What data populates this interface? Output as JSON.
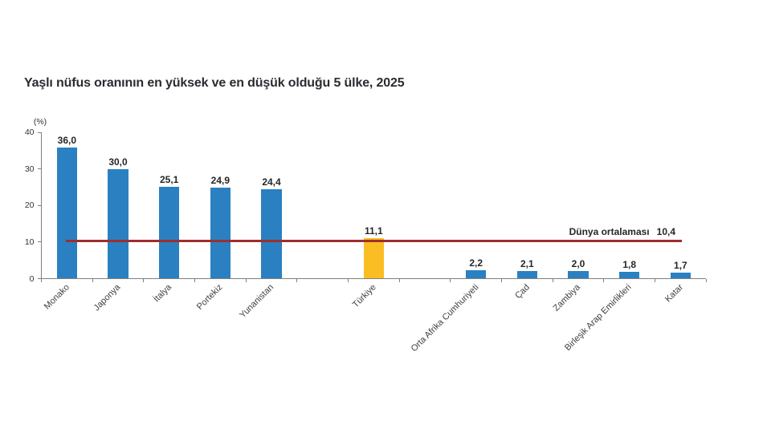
{
  "chart_data": {
    "type": "bar",
    "title": "Yaşlı nüfus oranının en yüksek ve en düşük olduğu 5 ülke, 2025",
    "unit_label": "(%)",
    "categories": [
      "Monako",
      "Japonya",
      "İtalya",
      "Portekiz",
      "Yunanistan",
      "",
      "Türkiye",
      "",
      "Orta Afrika Cumhuriyeti",
      "Çad",
      "Zambiya",
      "Birleşik Arap Emirlikleri",
      "Katar"
    ],
    "values": [
      36.0,
      30.0,
      25.1,
      24.9,
      24.4,
      null,
      11.1,
      null,
      2.2,
      2.1,
      2.0,
      1.8,
      1.7
    ],
    "value_labels": [
      "36,0",
      "30,0",
      "25,1",
      "24,9",
      "24,4",
      "",
      "11,1",
      "",
      "2,2",
      "2,1",
      "2,0",
      "1,8",
      "1,7"
    ],
    "highlight_index": 6,
    "ylim": [
      0,
      40
    ],
    "yticks": [
      0,
      10,
      20,
      30,
      40
    ],
    "grid": false,
    "legend": false,
    "reference_line": {
      "value": 10.4,
      "label": "Dünya ortalaması",
      "value_label": "10,4",
      "color": "#9e2e2e"
    },
    "colors": {
      "bar": "#2a80c1",
      "highlight_bar": "#fabd23",
      "axis": "#808080",
      "title_text": "#2b2b31",
      "label_text": "#262626",
      "tick_text": "#333333",
      "category_text": "#3f3f3f"
    }
  }
}
